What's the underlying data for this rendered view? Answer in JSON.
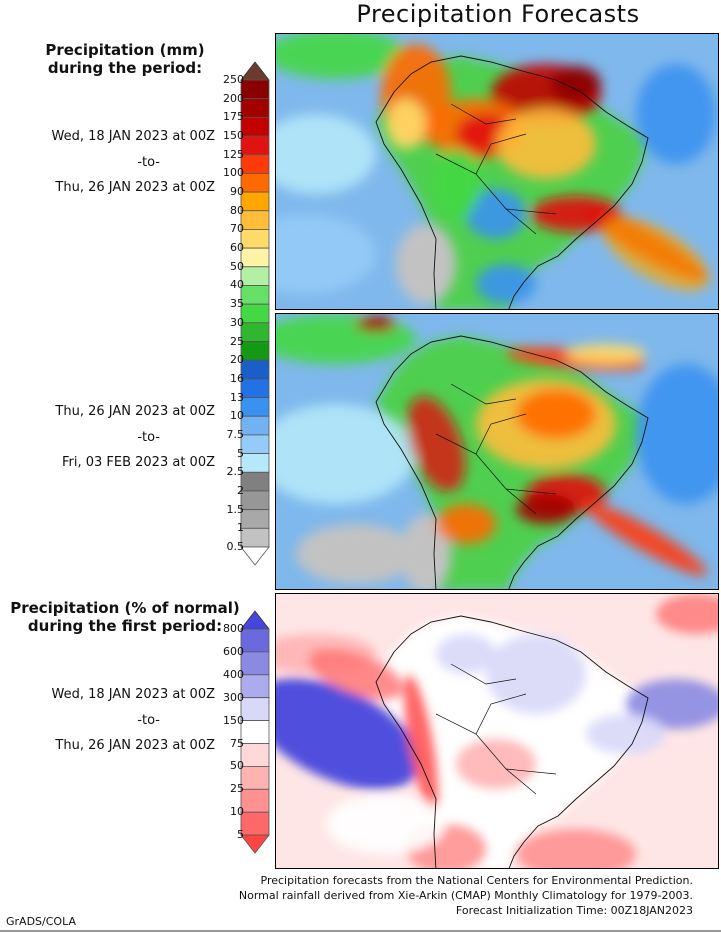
{
  "title": "Precipitation Forecasts",
  "section1": {
    "header": [
      "Precipitation (mm)",
      "during the period:"
    ],
    "period1": {
      "start": "Wed, 18 JAN 2023 at 00Z",
      "to": "-to-",
      "end": "Thu, 26 JAN 2023 at 00Z"
    },
    "period2": {
      "start": "Thu, 26 JAN 2023 at 00Z",
      "to": "-to-",
      "end": "Fri, 03 FEB 2023 at 00Z"
    },
    "colorbar": {
      "labels": [
        "250",
        "200",
        "175",
        "150",
        "125",
        "100",
        "90",
        "80",
        "70",
        "60",
        "50",
        "40",
        "35",
        "30",
        "25",
        "20",
        "16",
        "13",
        "10",
        "7.5",
        "5",
        "2.5",
        "2",
        "1.5",
        "1",
        "0.5"
      ],
      "colors": [
        "#8a0000",
        "#a30000",
        "#c20000",
        "#e01212",
        "#ff3a0a",
        "#ff6a00",
        "#ffa600",
        "#ffbd3a",
        "#ffdc6a",
        "#fff3a6",
        "#b2f0a4",
        "#66e066",
        "#44d844",
        "#2fb82f",
        "#139913",
        "#1a5fc8",
        "#2272e6",
        "#3a92f0",
        "#72b2f2",
        "#94cbf8",
        "#b4e8fa",
        "#808080",
        "#979797",
        "#a8a8a8",
        "#c2c2c2"
      ],
      "top_arrow_color": "#6b3b2e",
      "bottom_arrow_color": "#ffffff"
    }
  },
  "section2": {
    "header": [
      "Precipitation (% of normal)",
      "during the first period:"
    ],
    "period": {
      "start": "Wed, 18 JAN 2023 at 00Z",
      "to": "-to-",
      "end": "Thu, 26 JAN 2023 at 00Z"
    },
    "colorbar": {
      "labels": [
        "800",
        "600",
        "400",
        "300",
        "150",
        "75",
        "50",
        "25",
        "10",
        "5"
      ],
      "colors": [
        "#6a6ade",
        "#8a8ae2",
        "#ababee",
        "#d8d8f8",
        "#ffffff",
        "#ffd9d9",
        "#ffb2b2",
        "#ff9191",
        "#ff6868"
      ],
      "top_arrow_color": "#4646dc",
      "bottom_arrow_color": "#ff4444"
    }
  },
  "footer": {
    "line1": "Precipitation forecasts from the National Centers for Environmental Prediction.",
    "line2": "Normal rainfall derived from Xie-Arkin (CMAP) Monthly Climatology for 1979-2003.",
    "line3": "Forecast Initialization Time: 00Z18JAN2023"
  },
  "credit": "GrADS/COLA"
}
